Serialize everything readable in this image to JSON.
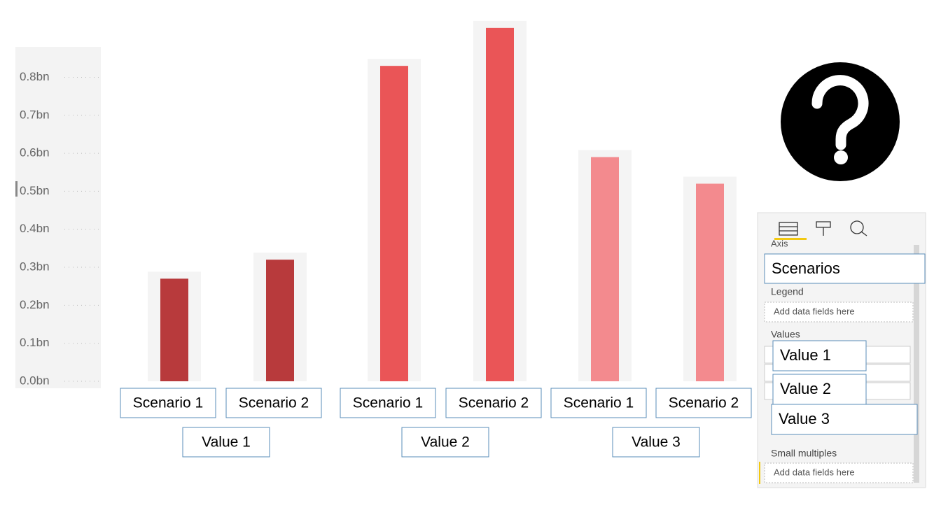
{
  "chart_data": {
    "type": "bar",
    "categories": [
      "Scenario 1",
      "Scenario 2"
    ],
    "series": [
      {
        "name": "Value 1",
        "color": "#b83a3c",
        "values": [
          0.27,
          0.32
        ]
      },
      {
        "name": "Value 2",
        "color": "#ea5557",
        "values": [
          0.83,
          0.93
        ]
      },
      {
        "name": "Value 3",
        "color": "#f38a8e",
        "values": [
          0.59,
          0.52
        ]
      }
    ],
    "ylim": [
      0,
      0.95
    ],
    "yticks": [
      {
        "value": 0,
        "label": "0.0bn"
      },
      {
        "value": 0.1,
        "label": "0.1bn"
      },
      {
        "value": 0.2,
        "label": "0.2bn"
      },
      {
        "value": 0.3,
        "label": "0.3bn"
      },
      {
        "value": 0.4,
        "label": "0.4bn"
      },
      {
        "value": 0.5,
        "label": "0.5bn"
      },
      {
        "value": 0.6,
        "label": "0.6bn"
      },
      {
        "value": 0.7,
        "label": "0.7bn"
      },
      {
        "value": 0.8,
        "label": "0.8bn"
      }
    ],
    "grid": true
  },
  "field_pane": {
    "axis_label": "Axis",
    "axis_field": "Scenarios",
    "legend_label": "Legend",
    "legend_placeholder": "Add data fields here",
    "values_label": "Values",
    "value_fields": [
      "Value 1",
      "Value 2",
      "Value 3"
    ],
    "small_multiples_label": "Small multiples",
    "small_multiples_placeholder": "Add data fields here"
  }
}
